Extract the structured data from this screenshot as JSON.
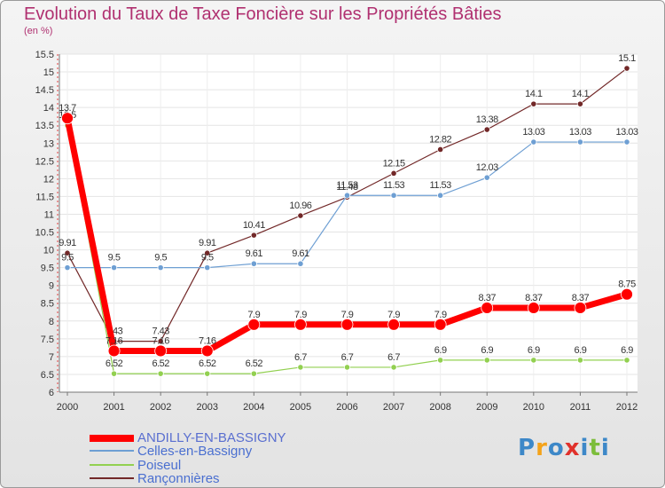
{
  "title": "Evolution du Taux de Taxe Foncière sur les Propriétés Bâties",
  "subtitle": "(en %)",
  "chart_data": {
    "type": "line",
    "title": "Evolution du Taux de Taxe Foncière sur les Propriétés Bâties",
    "ylabel": "(en %)",
    "xlabel": "",
    "ylim": [
      6,
      15.5
    ],
    "yticks": [
      "6",
      "6.5",
      "7",
      "7.5",
      "8",
      "8.5",
      "9",
      "9.5",
      "10",
      "10.5",
      "11",
      "11.5",
      "12",
      "12.5",
      "13",
      "13.5",
      "14",
      "14.5",
      "15",
      "15.5"
    ],
    "categories": [
      "2000",
      "2001",
      "2002",
      "2003",
      "2004",
      "2005",
      "2006",
      "2007",
      "2008",
      "2009",
      "2010",
      "2011",
      "2012"
    ],
    "series": [
      {
        "name": "Rançonnières",
        "color": "#722828",
        "values": [
          9.91,
          7.43,
          7.43,
          9.91,
          10.41,
          10.96,
          11.48,
          12.15,
          12.82,
          13.38,
          14.1,
          14.1,
          15.1
        ],
        "labels": [
          "9.91",
          "7.43",
          "7.43",
          "9.91",
          "10.41",
          "10.96",
          "11.48",
          "12.15",
          "12.82",
          "13.38",
          "14.1",
          "14.1",
          "15.1"
        ]
      },
      {
        "name": "Celles-en-Bassigny",
        "color": "#6e9fd3",
        "values": [
          9.5,
          9.5,
          9.5,
          9.5,
          9.61,
          9.61,
          11.53,
          11.53,
          11.53,
          12.03,
          13.03,
          13.03,
          13.03
        ],
        "labels": [
          "9.5",
          "9.5",
          "9.5",
          "9.5",
          "9.61",
          "9.61",
          "11.53",
          "11.53",
          "11.53",
          "12.03",
          "13.03",
          "13.03",
          "13.03"
        ]
      },
      {
        "name": "Poiseul",
        "color": "#92d050",
        "values": [
          13.5,
          6.52,
          6.52,
          6.52,
          6.52,
          6.7,
          6.7,
          6.7,
          6.9,
          6.9,
          6.9,
          6.9,
          6.9
        ],
        "labels": [
          "13.5",
          "6.52",
          "6.52",
          "6.52",
          "6.52",
          "6.7",
          "6.7",
          "6.7",
          "6.9",
          "6.9",
          "6.9",
          "6.9",
          "6.9"
        ]
      },
      {
        "name": "ANDILLY-EN-BASSIGNY",
        "color": "#ff0000",
        "values": [
          13.7,
          7.16,
          7.16,
          7.16,
          7.9,
          7.9,
          7.9,
          7.9,
          7.9,
          8.37,
          8.37,
          8.37,
          8.75
        ],
        "labels": [
          "13.7",
          "7.16",
          "7.16",
          "7.16",
          "7.9",
          "7.9",
          "7.9",
          "7.9",
          "7.9",
          "8.37",
          "8.37",
          "8.37",
          "8.75"
        ]
      }
    ]
  },
  "legend": [
    {
      "label": "ANDILLY-EN-BASSIGNY",
      "color": "#ff0000"
    },
    {
      "label": "Celles-en-Bassigny",
      "color": "#6e9fd3"
    },
    {
      "label": "Poiseul",
      "color": "#92d050"
    },
    {
      "label": "Rançonnières",
      "color": "#722828"
    }
  ],
  "logo": {
    "text": "Proxiti",
    "letters": [
      {
        "ch": "P",
        "color": "#3d88c8"
      },
      {
        "ch": "r",
        "color": "#f4a31a"
      },
      {
        "ch": "o",
        "color": "#3d88c8"
      },
      {
        "ch": "x",
        "color": "#e0312b"
      },
      {
        "ch": "i",
        "color": "#3d88c8"
      },
      {
        "ch": "t",
        "color": "#7cbd3b"
      },
      {
        "ch": "i",
        "color": "#3d88c8"
      }
    ]
  }
}
